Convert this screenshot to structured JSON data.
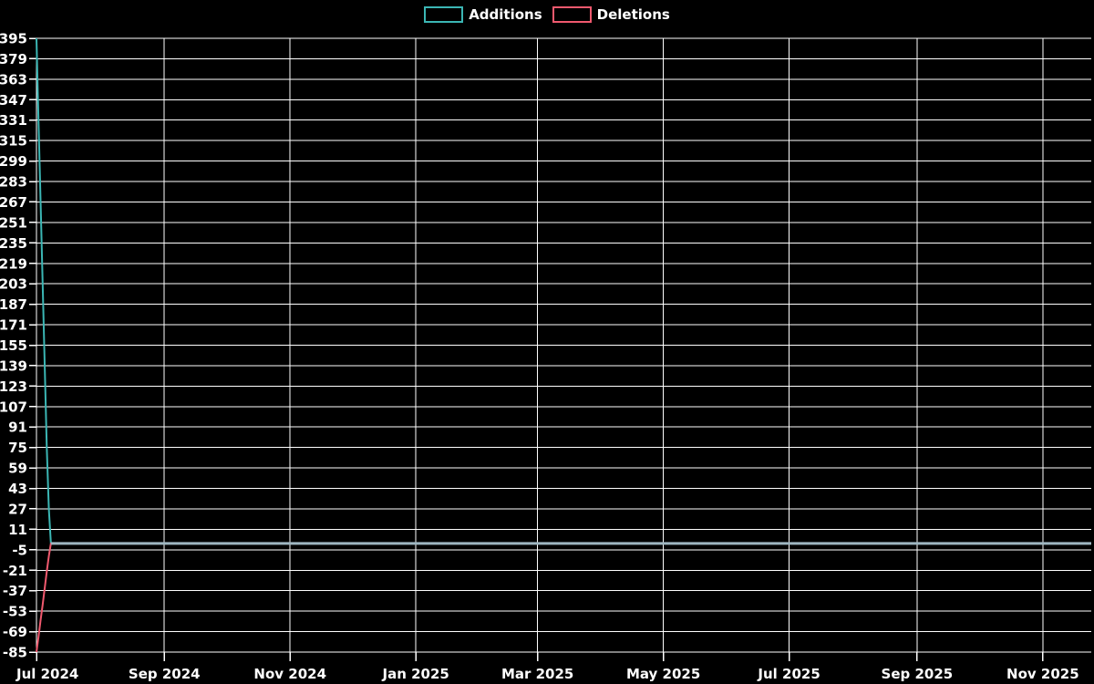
{
  "legend": {
    "items": [
      {
        "label": "Additions",
        "color": "#3bb6b4"
      },
      {
        "label": "Deletions",
        "color": "#f0596e"
      }
    ]
  },
  "chart_data": {
    "type": "line",
    "title": "",
    "xlabel": "",
    "ylabel": "",
    "legend_position": "top-center",
    "grid": true,
    "background_color": "#000000",
    "grid_color": "#ffffff",
    "text_color": "#ffffff",
    "zero_overlap_color": "#9fb6c1",
    "ylim": [
      -85,
      395
    ],
    "y_ticks": [
      395,
      379,
      363,
      347,
      331,
      315,
      299,
      283,
      267,
      251,
      235,
      219,
      203,
      187,
      171,
      155,
      139,
      123,
      107,
      91,
      75,
      59,
      43,
      27,
      11,
      -5,
      -21,
      -37,
      -53,
      -69,
      -85
    ],
    "x_tick_labels": [
      "Jul 2024",
      "Sep 2024",
      "Nov 2024",
      "Jan 2025",
      "Mar 2025",
      "May 2025",
      "Jul 2025",
      "Sep 2025",
      "Nov 2025"
    ],
    "x_tick_days": [
      0,
      62,
      123,
      184,
      243,
      304,
      365,
      427,
      488
    ],
    "xlim_days": [
      0,
      511.5
    ],
    "x_unit": "days since 2024-07-01",
    "series": [
      {
        "name": "Additions",
        "color": "#3bb6b4",
        "points": [
          [
            0,
            395
          ],
          [
            1,
            330
          ],
          [
            2,
            267
          ],
          [
            3,
            203
          ],
          [
            4,
            139
          ],
          [
            5,
            75
          ],
          [
            6,
            27
          ],
          [
            7,
            0
          ],
          [
            511.5,
            0
          ]
        ]
      },
      {
        "name": "Deletions",
        "color": "#f0596e",
        "points": [
          [
            0,
            -85
          ],
          [
            1,
            -73
          ],
          [
            2,
            -60
          ],
          [
            3,
            -48
          ],
          [
            4,
            -35
          ],
          [
            5,
            -22
          ],
          [
            6,
            -10
          ],
          [
            7,
            0
          ],
          [
            511.5,
            0
          ]
        ]
      }
    ]
  }
}
